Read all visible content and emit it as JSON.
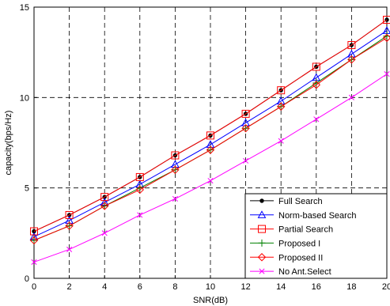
{
  "chart_data": {
    "type": "line",
    "xlabel": "SNR(dB)",
    "ylabel": "capacity(bps/Hz)",
    "xlim": [
      0,
      20
    ],
    "ylim": [
      0,
      15
    ],
    "xticks": [
      "0",
      "2",
      "4",
      "6",
      "8",
      "10",
      "12",
      "14",
      "16",
      "18",
      "20"
    ],
    "yticks": [
      "0",
      "5",
      "10",
      "15"
    ],
    "grid": true,
    "legend_position": "bottom-right",
    "x": [
      0,
      2,
      4,
      6,
      8,
      10,
      12,
      14,
      16,
      18,
      20
    ],
    "series": [
      {
        "name": "Full Search",
        "marker": "dot",
        "color": "#000000",
        "values": [
          2.6,
          3.5,
          4.5,
          5.6,
          6.8,
          7.9,
          9.1,
          10.4,
          11.7,
          12.9,
          14.3
        ]
      },
      {
        "name": "Norm-based Search",
        "marker": "triangle",
        "color": "#0000ff",
        "values": [
          2.3,
          3.2,
          4.2,
          5.2,
          6.3,
          7.4,
          8.6,
          9.8,
          11.1,
          12.4,
          13.7
        ]
      },
      {
        "name": "Partial Search",
        "marker": "square",
        "color": "#ff0000",
        "values": [
          2.6,
          3.5,
          4.5,
          5.6,
          6.8,
          7.9,
          9.1,
          10.4,
          11.7,
          12.9,
          14.3
        ]
      },
      {
        "name": "Proposed I",
        "marker": "plus",
        "color": "#008000",
        "values": [
          2.1,
          2.9,
          4.0,
          5.0,
          6.0,
          7.1,
          8.3,
          9.5,
          10.8,
          12.1,
          13.4
        ]
      },
      {
        "name": "Proposed II",
        "marker": "diamond",
        "color": "#ff0000",
        "values": [
          2.1,
          2.9,
          4.0,
          4.9,
          6.0,
          7.1,
          8.3,
          9.5,
          10.7,
          12.1,
          13.3
        ]
      },
      {
        "name": "No Ant.Select",
        "marker": "x",
        "color": "#ff00ff",
        "values": [
          0.9,
          1.6,
          2.5,
          3.5,
          4.4,
          5.4,
          6.5,
          7.6,
          8.8,
          10.0,
          11.3
        ]
      }
    ]
  }
}
